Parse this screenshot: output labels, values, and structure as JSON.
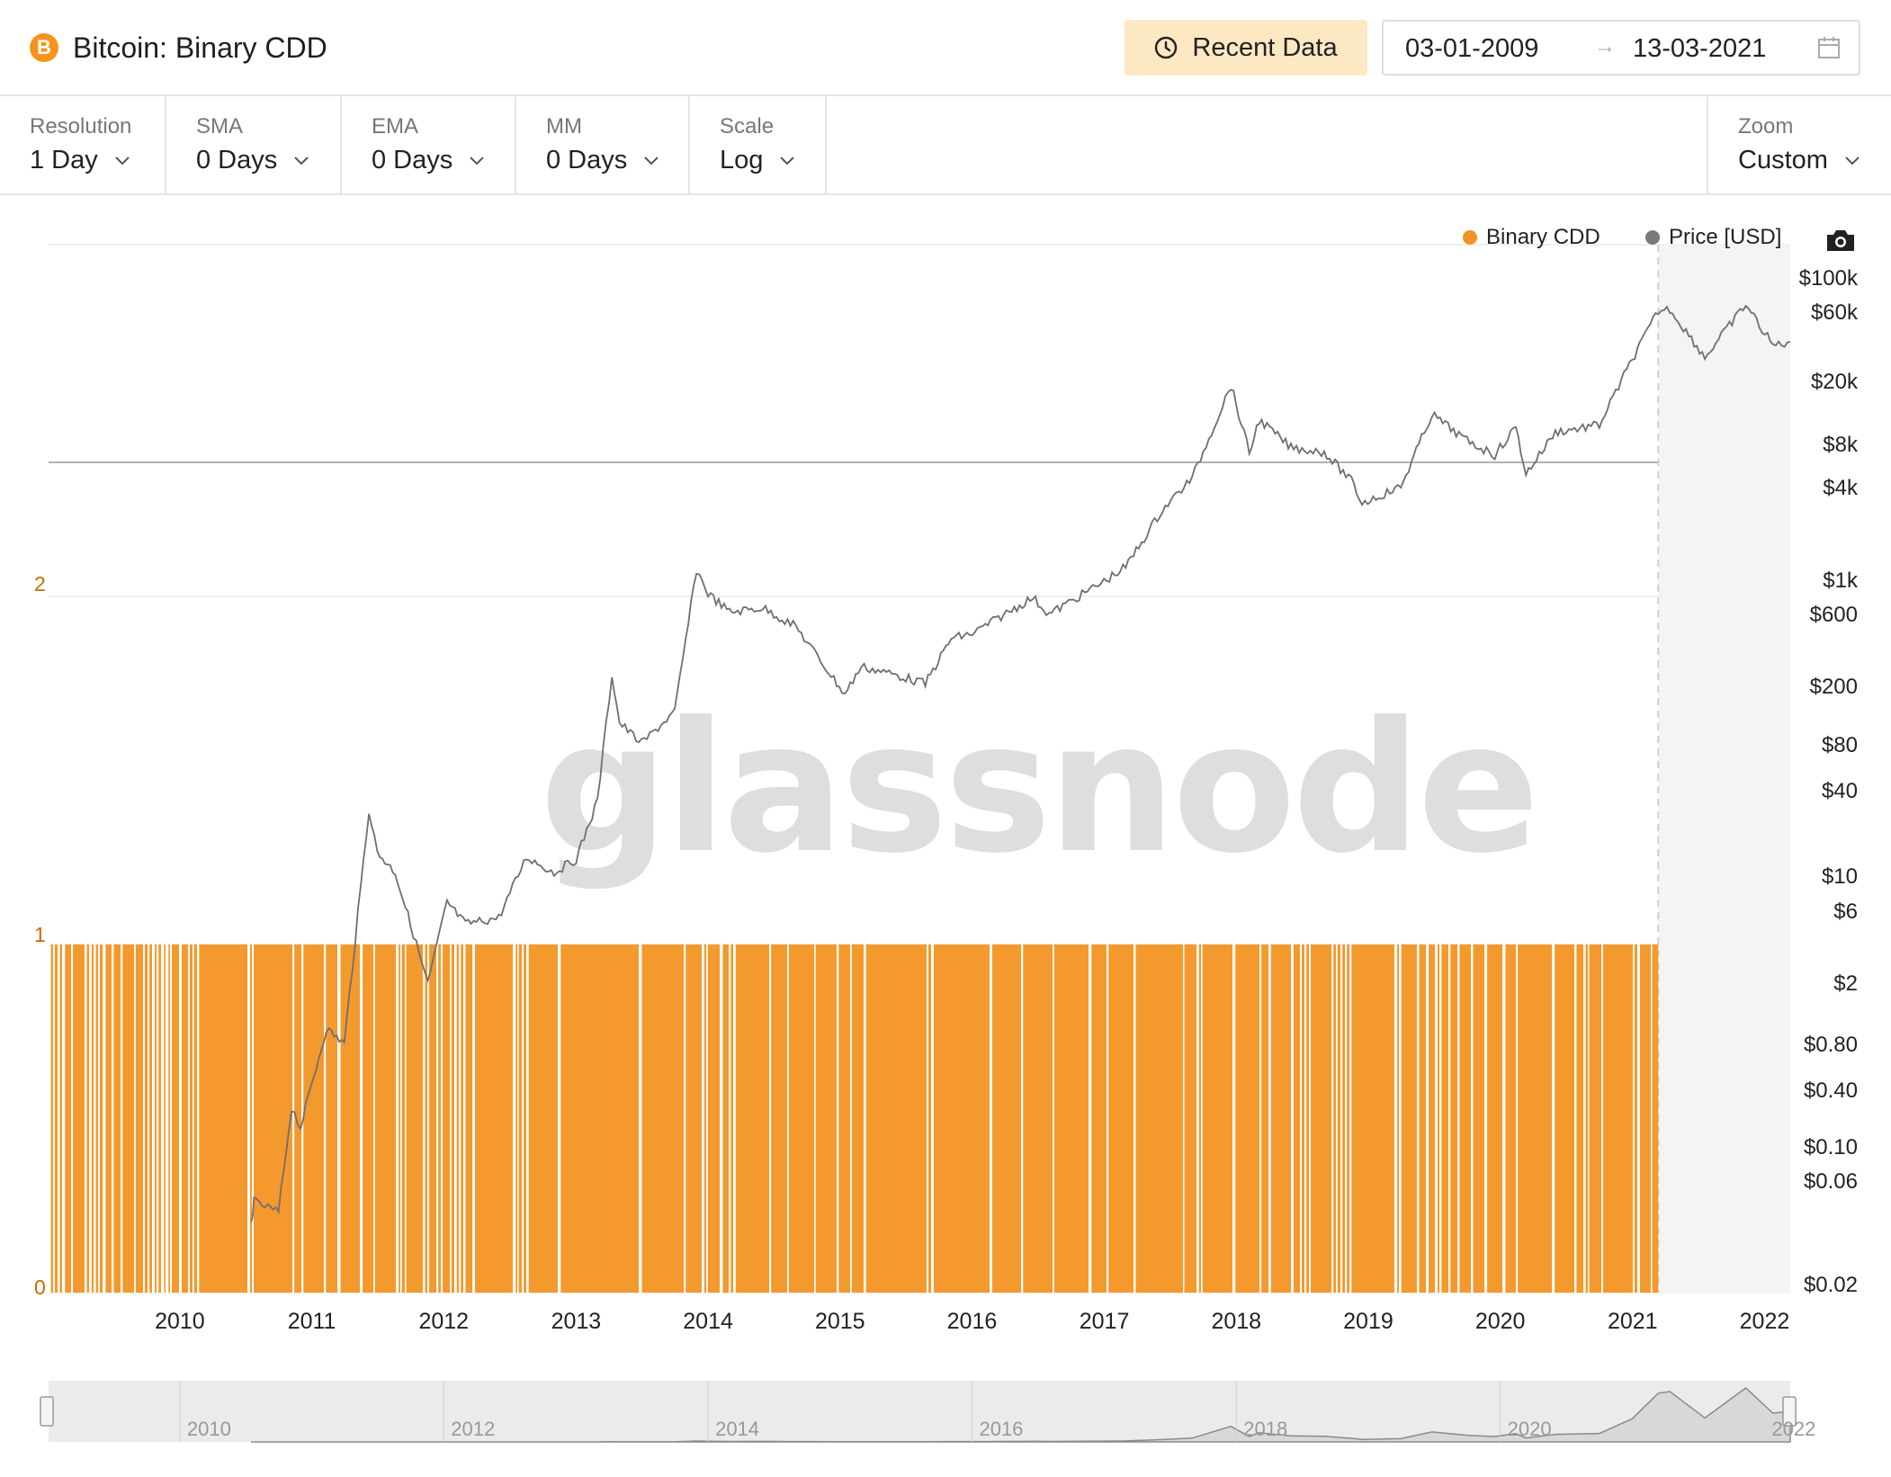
{
  "header": {
    "title": "Bitcoin: Binary CDD",
    "coin_icon": "B",
    "recent_label": "Recent Data",
    "date_start": "03-01-2009",
    "date_arrow": "→",
    "date_end": "13-03-2021"
  },
  "controls": [
    {
      "label": "Resolution",
      "value": "1 Day"
    },
    {
      "label": "SMA",
      "value": "0 Days"
    },
    {
      "label": "EMA",
      "value": "0 Days"
    },
    {
      "label": "MM",
      "value": "0 Days"
    },
    {
      "label": "Scale",
      "value": "Log"
    }
  ],
  "zoom": {
    "label": "Zoom",
    "value": "Custom"
  },
  "watermark": "glassnode",
  "legend": [
    {
      "name": "Binary CDD",
      "color": "#f39422"
    },
    {
      "name": "Price [USD]",
      "color": "#7a7a7a"
    }
  ],
  "chart_data": {
    "type": "bar",
    "series": [
      {
        "name": "Binary CDD",
        "axis": "left",
        "color": "#f39422",
        "values_description_note": ""
      },
      {
        "name": "Price [USD]",
        "axis": "right",
        "color": "#6f6f6f",
        "scale": "log"
      }
    ],
    "left_axis": {
      "ticks": [
        "0",
        "1",
        "2"
      ],
      "ylim": [
        0,
        2
      ]
    },
    "right_axis": {
      "scale": "log",
      "ticks": [
        "$100k",
        "$60k",
        "$20k",
        "$8k",
        "$4k",
        "$1k",
        "$600",
        "$200",
        "$80",
        "$40",
        "$10",
        "$6",
        "$2",
        "$0.80",
        "$0.40",
        "$0.10",
        "$0.06",
        "$0.02"
      ]
    },
    "x_ticks": [
      "2010",
      "2011",
      "2012",
      "2013",
      "2014",
      "2015",
      "2016",
      "2017",
      "2018",
      "2019",
      "2020",
      "2021",
      "2022"
    ],
    "x_range": [
      "2009-01-03",
      "2022-03-13"
    ],
    "binary_cdd_end": "2021-03-13",
    "price_points": [
      [
        "2010-07-17",
        0.05
      ],
      [
        "2010-07-25",
        0.07
      ],
      [
        "2010-10-01",
        0.06
      ],
      [
        "2010-11-06",
        0.3
      ],
      [
        "2010-12-01",
        0.22
      ],
      [
        "2011-02-10",
        1.0
      ],
      [
        "2011-04-01",
        0.8
      ],
      [
        "2011-06-08",
        29.0
      ],
      [
        "2011-07-01",
        15.0
      ],
      [
        "2011-08-20",
        11.0
      ],
      [
        "2011-10-01",
        5.0
      ],
      [
        "2011-11-18",
        2.0
      ],
      [
        "2012-01-10",
        7.0
      ],
      [
        "2012-03-01",
        5.0
      ],
      [
        "2012-06-01",
        5.5
      ],
      [
        "2012-08-17",
        14.0
      ],
      [
        "2012-11-01",
        11.0
      ],
      [
        "2013-01-01",
        13.5
      ],
      [
        "2013-03-01",
        33.0
      ],
      [
        "2013-04-10",
        230.0
      ],
      [
        "2013-05-01",
        110.0
      ],
      [
        "2013-07-01",
        80.0
      ],
      [
        "2013-10-01",
        130.0
      ],
      [
        "2013-11-30",
        1150.0
      ],
      [
        "2014-01-01",
        800.0
      ],
      [
        "2014-03-01",
        600.0
      ],
      [
        "2014-06-01",
        640.0
      ],
      [
        "2014-09-01",
        480.0
      ],
      [
        "2015-01-14",
        170.0
      ],
      [
        "2015-03-01",
        260.0
      ],
      [
        "2015-06-01",
        230.0
      ],
      [
        "2015-08-25",
        200.0
      ],
      [
        "2015-11-04",
        400.0
      ],
      [
        "2016-01-01",
        430.0
      ],
      [
        "2016-06-17",
        750.0
      ],
      [
        "2016-08-01",
        580.0
      ],
      [
        "2016-12-31",
        960.0
      ],
      [
        "2017-03-01",
        1200.0
      ],
      [
        "2017-06-11",
        2900.0
      ],
      [
        "2017-09-01",
        4700.0
      ],
      [
        "2017-12-17",
        19500.0
      ],
      [
        "2018-02-06",
        6900.0
      ],
      [
        "2018-03-05",
        11500.0
      ],
      [
        "2018-06-01",
        7500.0
      ],
      [
        "2018-09-01",
        7000.0
      ],
      [
        "2018-11-15",
        4500.0
      ],
      [
        "2018-12-15",
        3200.0
      ],
      [
        "2019-04-01",
        4100.0
      ],
      [
        "2019-06-26",
        12500.0
      ],
      [
        "2019-10-01",
        8300.0
      ],
      [
        "2019-12-17",
        6700.0
      ],
      [
        "2020-02-13",
        10300.0
      ],
      [
        "2020-03-12",
        5000.0
      ],
      [
        "2020-06-01",
        9500.0
      ],
      [
        "2020-10-01",
        10600.0
      ],
      [
        "2020-12-31",
        29000.0
      ],
      [
        "2021-03-13",
        61000.0
      ],
      [
        "2021-04-14",
        63000.0
      ],
      [
        "2021-07-20",
        30000.0
      ],
      [
        "2021-11-10",
        67500.0
      ],
      [
        "2022-01-24",
        36000.0
      ],
      [
        "2022-03-13",
        38000.0
      ]
    ]
  },
  "navigator": {
    "labels": [
      "2010",
      "2012",
      "2014",
      "2016",
      "2018",
      "2020",
      "2022"
    ]
  }
}
